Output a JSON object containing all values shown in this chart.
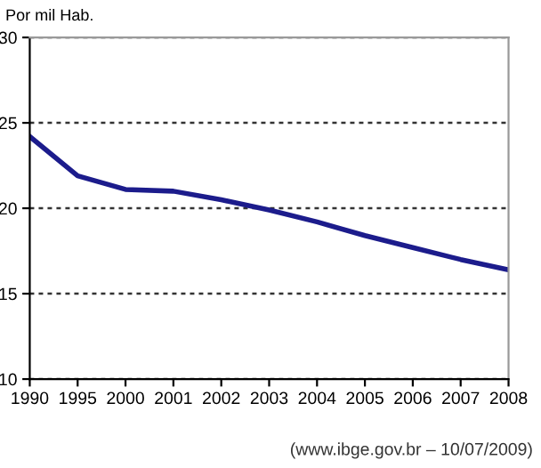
{
  "chart_data": {
    "type": "line",
    "ylabel": "Por mil Hab.",
    "categories": [
      "1990",
      "1995",
      "2000",
      "2001",
      "2002",
      "2003",
      "2004",
      "2005",
      "2006",
      "2007",
      "2008"
    ],
    "series": [
      {
        "color": "#1c1c8c",
        "values": [
          24.2,
          21.9,
          21.1,
          21.0,
          20.5,
          19.9,
          19.2,
          18.4,
          17.7,
          17.0,
          16.4
        ]
      }
    ],
    "ylim": [
      10,
      30
    ],
    "yticks": [
      10,
      15,
      20,
      25,
      30
    ],
    "grid": "y",
    "marker": "none",
    "line_style": "solid",
    "annotations": [
      "(www.ibge.gov.br – 10/07/2009)"
    ]
  }
}
